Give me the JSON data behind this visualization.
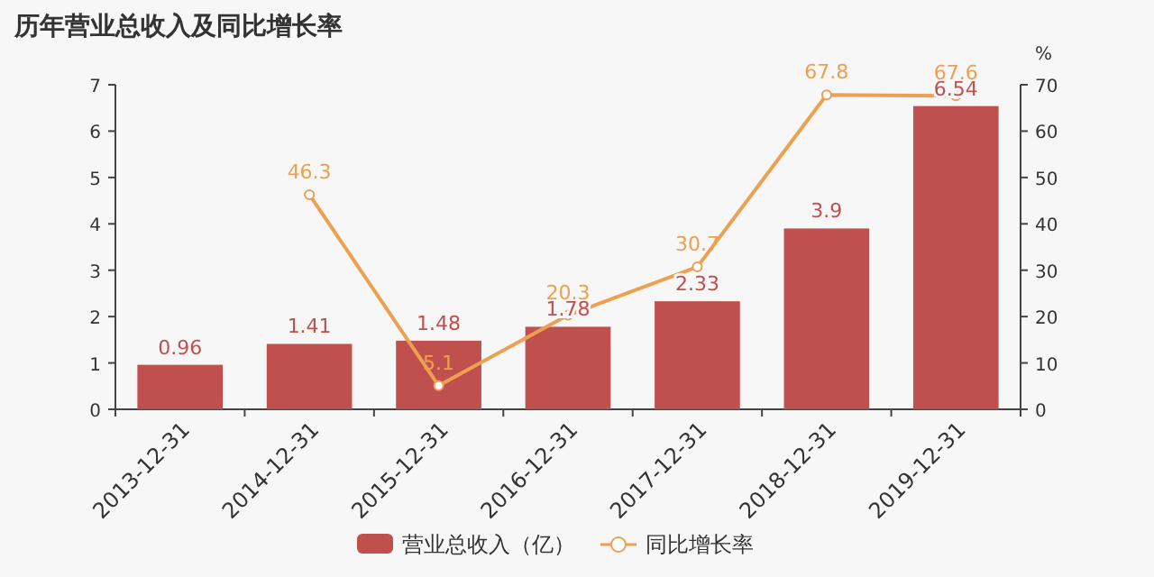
{
  "chart_data": {
    "type": "bar",
    "title": "历年营业总收入及同比增长率",
    "categories": [
      "2013-12-31",
      "2014-12-31",
      "2015-12-31",
      "2016-12-31",
      "2017-12-31",
      "2018-12-31",
      "2019-12-31"
    ],
    "series": [
      {
        "name": "营业总收入（亿）",
        "color": "#c0504d",
        "values": [
          0.96,
          1.41,
          1.48,
          1.78,
          2.33,
          3.9,
          6.54
        ]
      },
      {
        "name": "同比增长率",
        "type": "line",
        "axis": "y2",
        "color": "#eda050",
        "marker": "circle",
        "values": [
          null,
          46.3,
          5.1,
          20.3,
          30.7,
          67.8,
          67.6
        ]
      }
    ],
    "ylim": [
      0,
      7
    ],
    "yticks": [
      0,
      1,
      2,
      3,
      4,
      5,
      6,
      7
    ],
    "y2lim": [
      0,
      70
    ],
    "y2ticks": [
      0,
      10,
      20,
      30,
      40,
      50,
      60,
      70
    ],
    "y2label": "%",
    "data_labels": true,
    "legend": "bottom",
    "grid": false
  }
}
